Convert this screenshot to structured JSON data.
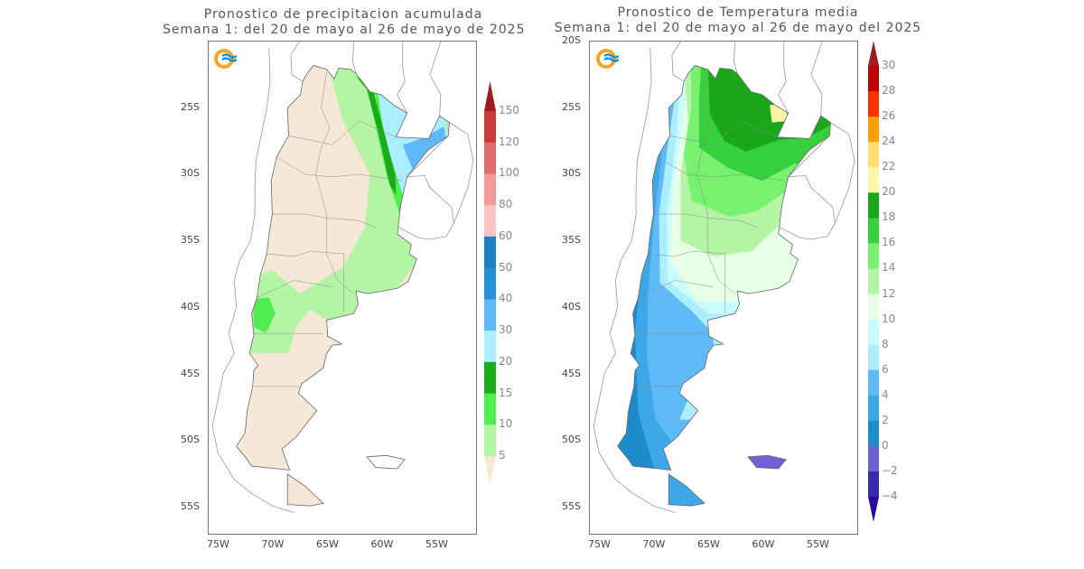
{
  "left_map": {
    "title_line1": "Pronostico de precipitacion acumulada",
    "title_line2": "Semana 1: del 20 de mayo al 26 de mayo de 2025",
    "lat_labels": [
      "25S",
      "30S",
      "35S",
      "40S",
      "45S",
      "50S",
      "55S"
    ],
    "lon_labels": [
      "75W",
      "70W",
      "65W",
      "60W",
      "55W"
    ],
    "colorbar": {
      "labels": [
        "150",
        "120",
        "100",
        "80",
        "60",
        "50",
        "40",
        "30",
        "20",
        "15",
        "10",
        "5"
      ],
      "colors": [
        "#c83c3c",
        "#e06c6c",
        "#f49a9a",
        "#fcc4c4",
        "#1a80c0",
        "#2690d4",
        "#60b8f8",
        "#aaeeff",
        "#1aaa1a",
        "#50ee50",
        "#b4f5a5"
      ],
      "over_color": "#a01c1c",
      "under_color": "#f5e8d6"
    }
  },
  "right_map": {
    "title_line1": "Pronostico de Temperatura media",
    "title_line2": "Semana 1: del 20 de mayo al 26 de mayo del 2025",
    "lat_labels": [
      "20S",
      "25S",
      "30S",
      "35S",
      "40S",
      "45S",
      "50S",
      "55S"
    ],
    "lon_labels": [
      "75W",
      "70W",
      "65W",
      "60W",
      "55W"
    ],
    "colorbar": {
      "labels": [
        "30",
        "28",
        "26",
        "24",
        "22",
        "20",
        "18",
        "16",
        "14",
        "12",
        "10",
        "8",
        "6",
        "4",
        "2",
        "0",
        "−2",
        "−4"
      ],
      "colors": [
        "#c00000",
        "#ff3200",
        "#ffa000",
        "#ffe070",
        "#fff5a8",
        "#1aa81a",
        "#36d03c",
        "#78f070",
        "#b4f5a5",
        "#e6ffe6",
        "#c8fcff",
        "#aaeeff",
        "#60baf8",
        "#3ca8e8",
        "#1c8ccc",
        "#7060d8",
        "#3b2ab0"
      ],
      "over_color": "#a01c1c",
      "under_color": "#2a0a9a"
    }
  },
  "logo_colors": {
    "ring": "#f5a623",
    "waves": "#1a8fd6"
  }
}
